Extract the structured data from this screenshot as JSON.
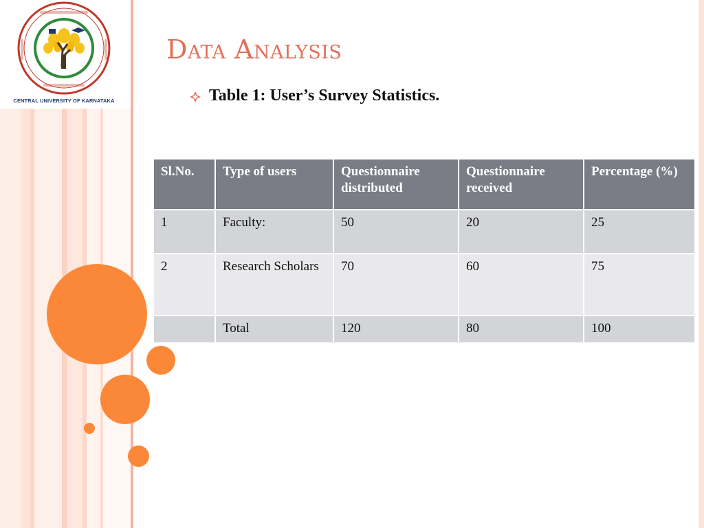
{
  "logo": {
    "caption": "CENTRAL UNIVERSITY OF KARNATAKA",
    "icon": "university-emblem-icon"
  },
  "colors": {
    "title": "#e26e57",
    "accent_orange": "#fb8838",
    "header_gray": "#7a7d86",
    "row_gray": "#d3d4d8",
    "row_light": "#e9e9eb"
  },
  "slide": {
    "title": "Data Analysis",
    "subtitle": "Table 1: User’s Survey Statistics."
  },
  "table": {
    "headers": [
      "Sl.No.",
      "Type of users",
      "Questionnaire distributed",
      "Questionnaire received",
      "Percentage (%)"
    ],
    "rows": [
      [
        "1",
        "Faculty:",
        "50",
        "20",
        "25"
      ],
      [
        "2",
        "Research Scholars",
        "70",
        "60",
        "75"
      ],
      [
        "",
        "Total",
        "120",
        "80",
        "100"
      ]
    ]
  }
}
